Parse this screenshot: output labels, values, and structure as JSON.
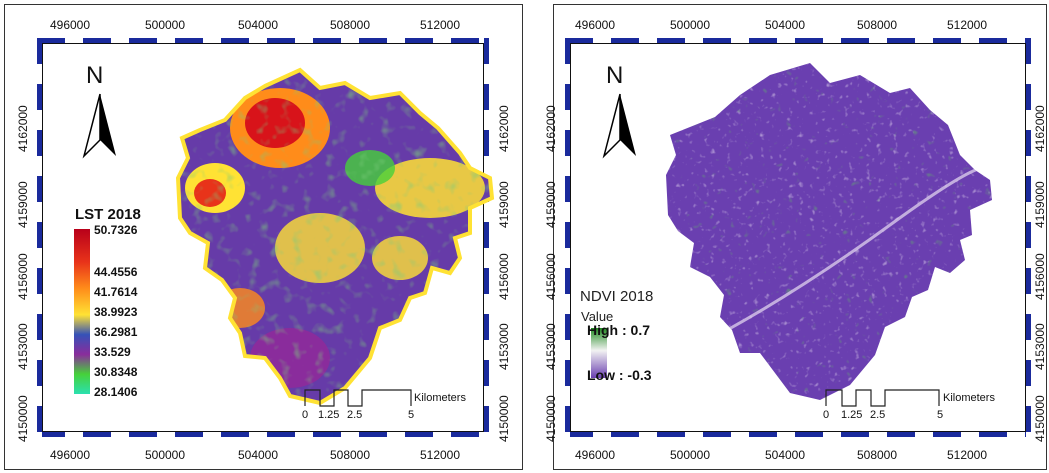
{
  "maps": [
    {
      "id": "lst",
      "x_ticks": [
        "496000",
        "500000",
        "504000",
        "508000",
        "512000"
      ],
      "y_ticks": [
        "4162000",
        "4159000",
        "4156000",
        "4153000",
        "4150000"
      ],
      "north_label": "N",
      "legend": {
        "title": "LST 2018",
        "values": [
          "50.7326",
          "44.4556",
          "41.7614",
          "38.9923",
          "36.2981",
          "33.529",
          "30.8348",
          "28.1406"
        ],
        "colors": [
          "#c0001a",
          "#e8331a",
          "#ff8c1a",
          "#ffe234",
          "#3552b8",
          "#8a2c9c",
          "#46d13a",
          "#2be0b0"
        ]
      },
      "scale": {
        "ticks": [
          "0",
          "1.25",
          "2.5",
          "5"
        ],
        "unit": "Kilometers"
      }
    },
    {
      "id": "ndvi",
      "x_ticks": [
        "496000",
        "500000",
        "504000",
        "508000",
        "512000"
      ],
      "y_ticks": [
        "4162000",
        "4159000",
        "4156000",
        "4153000",
        "4150000"
      ],
      "north_label": "N",
      "legend": {
        "title": "NDVI 2018",
        "subtitle": "Value",
        "high_label": "High : 0.7",
        "low_label": "Low : -0.3",
        "colors": [
          "#1f8a1f",
          "#f2f2f2",
          "#6a3fb0"
        ]
      },
      "scale": {
        "ticks": [
          "0",
          "1.25",
          "2.5",
          "5"
        ],
        "unit": "Kilometers"
      }
    }
  ]
}
